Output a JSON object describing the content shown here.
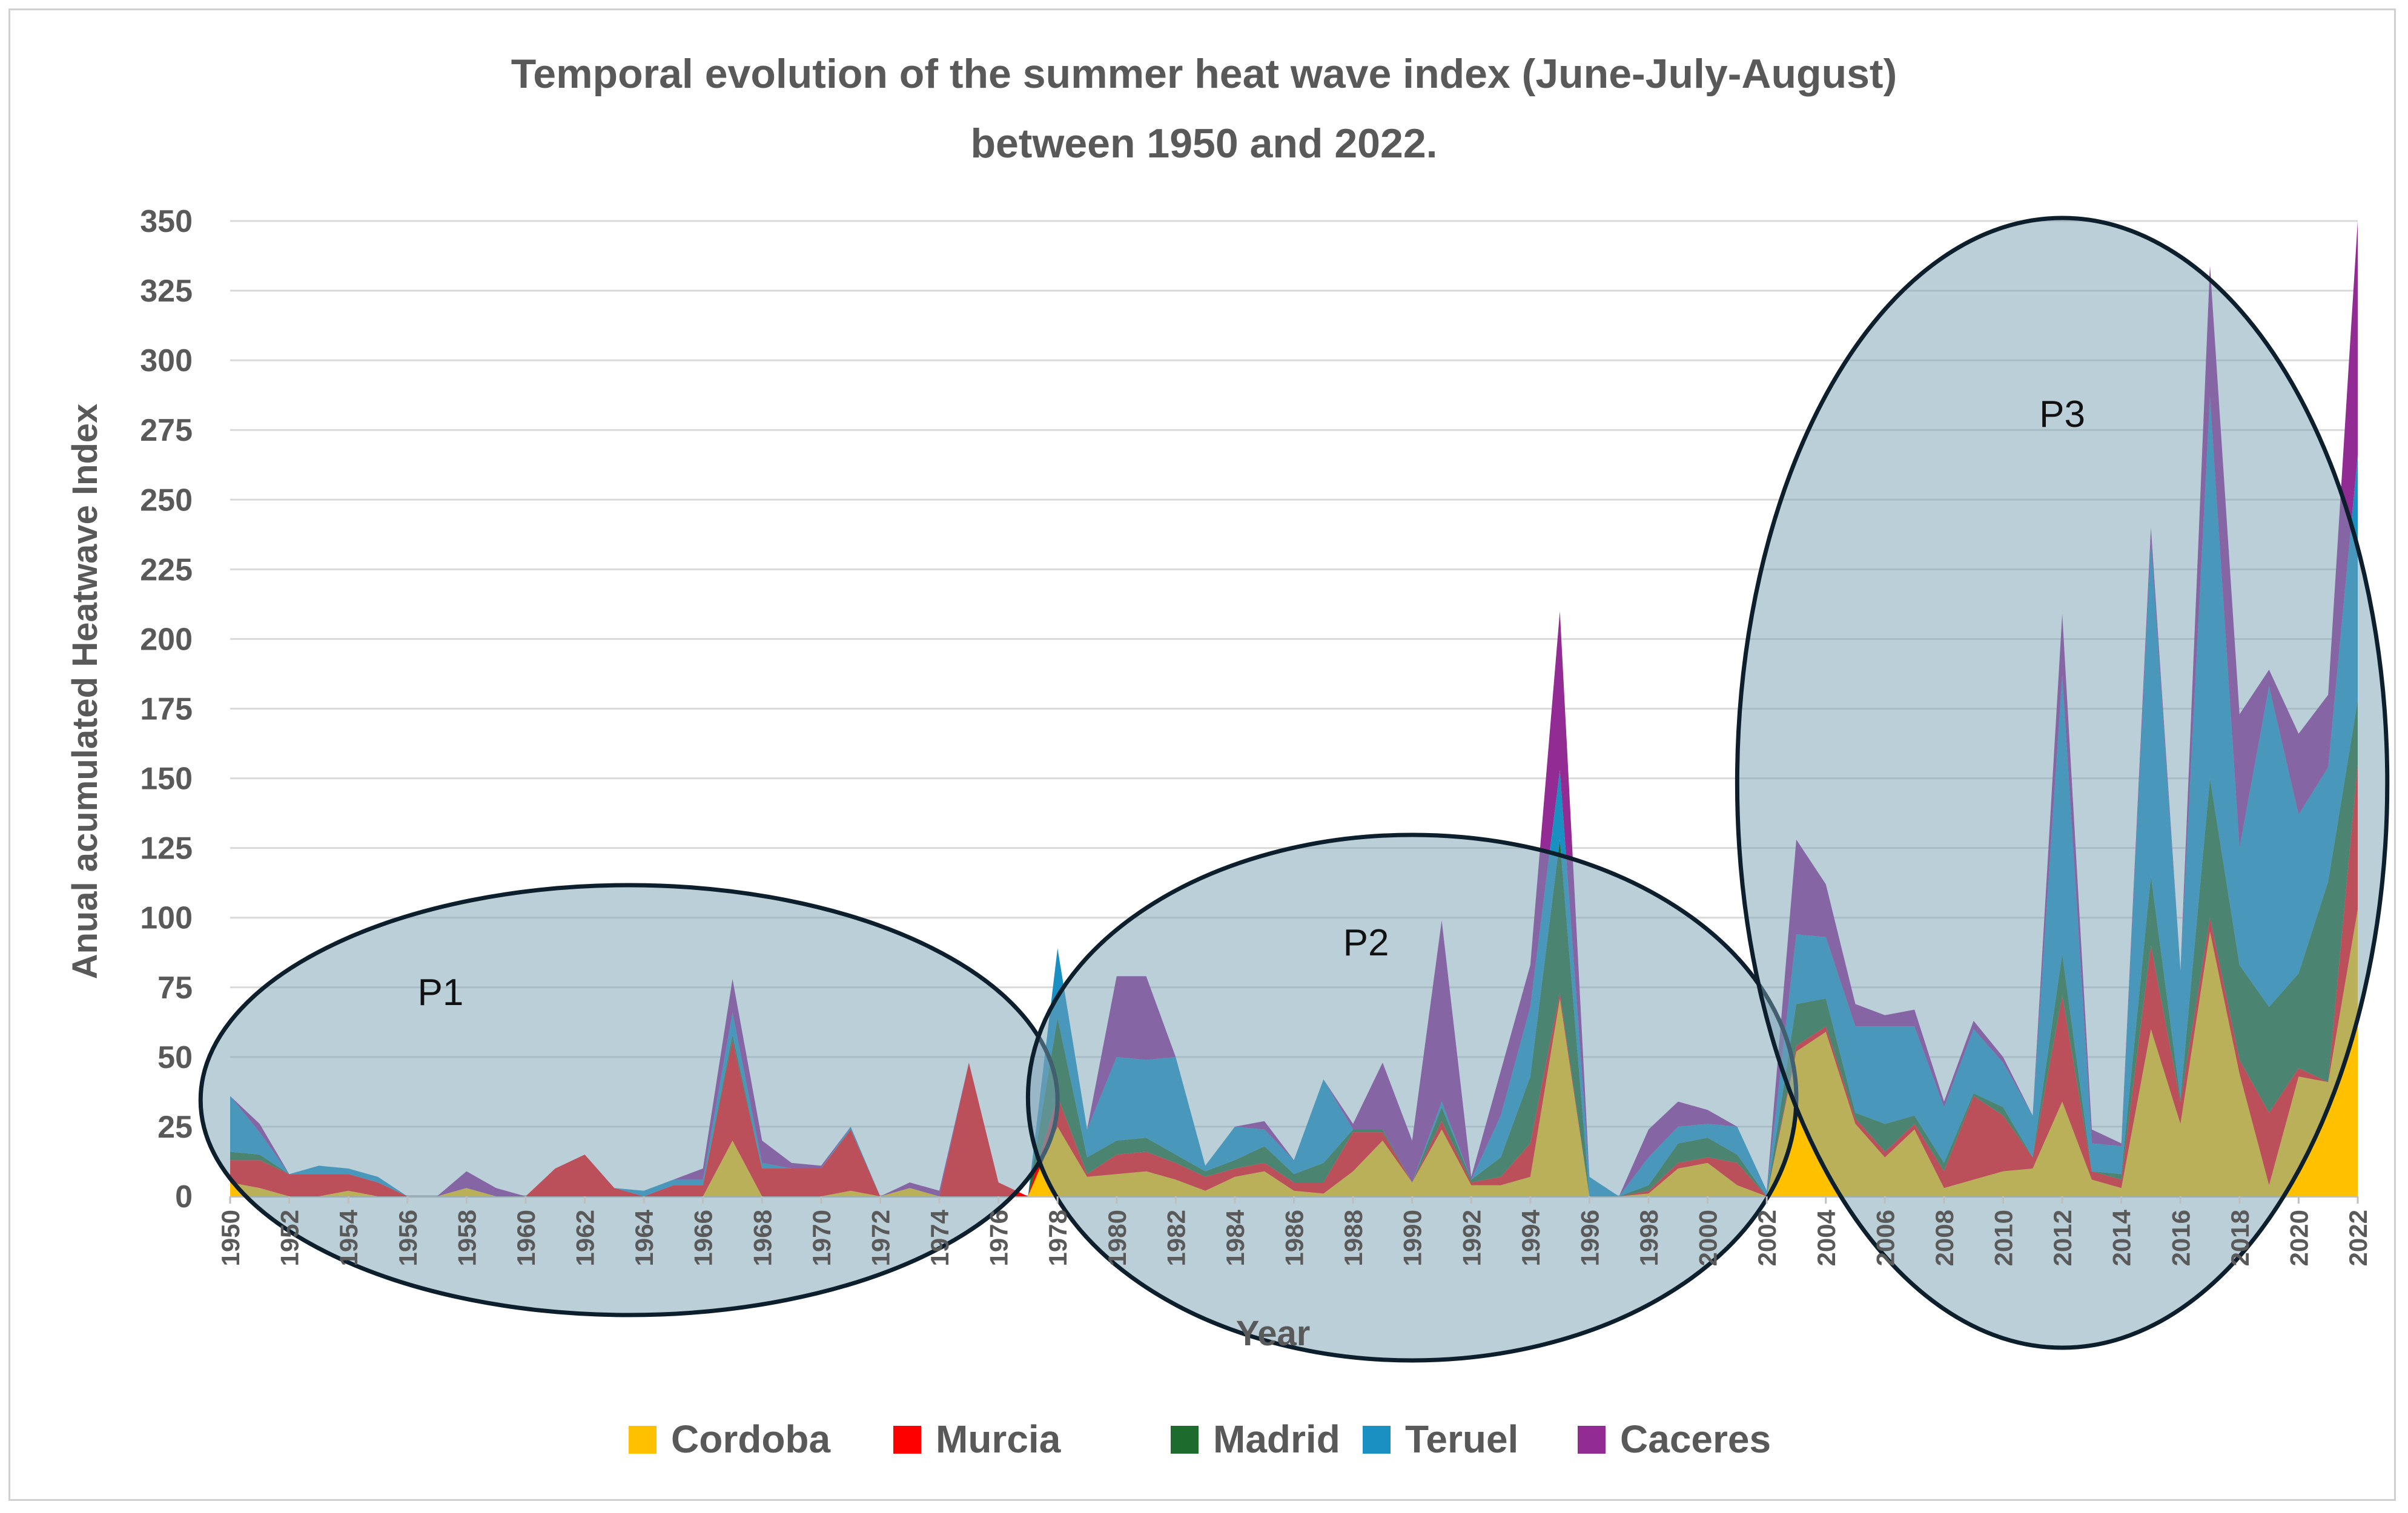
{
  "chart_data": {
    "type": "area",
    "stacked": true,
    "title_lines": [
      "Temporal evolution of the summer heat wave index (June-July-August)",
      "between 1950 and 2022."
    ],
    "xlabel": "Year",
    "ylabel": "Anual acumulated Heatwave Index",
    "ylim": [
      0,
      350
    ],
    "y_ticks": [
      0,
      25,
      50,
      75,
      100,
      125,
      150,
      175,
      200,
      225,
      250,
      275,
      300,
      325,
      350
    ],
    "x_tick_labels": [
      "1950",
      "1952",
      "1954",
      "1956",
      "1958",
      "1960",
      "1962",
      "1964",
      "1966",
      "1968",
      "1970",
      "1972",
      "1974",
      "1976",
      "1978",
      "1980",
      "1982",
      "1984",
      "1986",
      "1988",
      "1990",
      "1992",
      "1994",
      "1996",
      "1998",
      "2000",
      "2002",
      "2004",
      "2006",
      "2008",
      "2010",
      "2012",
      "2014",
      "2016",
      "2018",
      "2020",
      "2022"
    ],
    "x_start": 1950,
    "x_end": 2022,
    "grid": true,
    "legend_position": "bottom",
    "series": [
      {
        "name": "Cordoba",
        "color": "#FFC000",
        "values": [
          5,
          3,
          0,
          0,
          2,
          0,
          0,
          0,
          3,
          0,
          0,
          0,
          0,
          0,
          0,
          0,
          0,
          20,
          0,
          0,
          0,
          2,
          0,
          3,
          0,
          0,
          0,
          0,
          25,
          7,
          8,
          9,
          6,
          2,
          7,
          9,
          2,
          1,
          9,
          20,
          5,
          24,
          4,
          4,
          7,
          71,
          0,
          0,
          1,
          10,
          12,
          4,
          0,
          52,
          59,
          26,
          14,
          24,
          3,
          6,
          9,
          10,
          34,
          6,
          3,
          60,
          26,
          95,
          44,
          4,
          43,
          41,
          103
        ]
      },
      {
        "name": "Murcia",
        "color": "#FF0000",
        "values": [
          8,
          10,
          8,
          8,
          6,
          5,
          0,
          0,
          0,
          0,
          0,
          10,
          15,
          3,
          0,
          4,
          4,
          36,
          10,
          10,
          10,
          22,
          0,
          0,
          0,
          48,
          5,
          0,
          11,
          1,
          7,
          7,
          6,
          5,
          3,
          3,
          3,
          4,
          14,
          3,
          0,
          3,
          1,
          3,
          12,
          2,
          0,
          0,
          1,
          2,
          2,
          8,
          0,
          2,
          2,
          2,
          2,
          2,
          6,
          30,
          20,
          4,
          38,
          3,
          3,
          30,
          8,
          5,
          5,
          26,
          3,
          0,
          52
        ]
      },
      {
        "name": "Madrid",
        "color": "#1E6B2E",
        "values": [
          3,
          2,
          0,
          0,
          0,
          0,
          0,
          0,
          0,
          0,
          0,
          0,
          0,
          0,
          0,
          0,
          0,
          2,
          0,
          0,
          0,
          0,
          0,
          0,
          0,
          0,
          0,
          0,
          28,
          6,
          5,
          5,
          3,
          2,
          3,
          6,
          3,
          7,
          1,
          1,
          0,
          5,
          1,
          7,
          24,
          55,
          0,
          0,
          2,
          7,
          7,
          3,
          0,
          15,
          10,
          2,
          10,
          3,
          3,
          1,
          3,
          0,
          15,
          0,
          2,
          25,
          1,
          50,
          34,
          38,
          34,
          72,
          23
        ]
      },
      {
        "name": "Teruel",
        "color": "#1A8FC2",
        "values": [
          20,
          8,
          0,
          3,
          2,
          2,
          0,
          0,
          0,
          0,
          0,
          0,
          0,
          0,
          2,
          2,
          2,
          8,
          2,
          0,
          0,
          1,
          0,
          0,
          0,
          0,
          0,
          0,
          25,
          10,
          30,
          28,
          35,
          2,
          12,
          6,
          5,
          30,
          0,
          0,
          0,
          2,
          0,
          15,
          25,
          25,
          7,
          0,
          10,
          6,
          5,
          10,
          2,
          25,
          22,
          31,
          35,
          32,
          20,
          23,
          16,
          15,
          100,
          10,
          10,
          120,
          46,
          137,
          42,
          115,
          57,
          41,
          88
        ]
      },
      {
        "name": "Caceres",
        "color": "#922B93",
        "values": [
          0,
          3,
          0,
          0,
          0,
          0,
          0,
          0,
          6,
          3,
          0,
          0,
          0,
          0,
          0,
          0,
          4,
          12,
          8,
          2,
          1,
          0,
          0,
          2,
          2,
          0,
          0,
          0,
          0,
          0,
          29,
          30,
          0,
          0,
          0,
          3,
          0,
          0,
          2,
          24,
          15,
          65,
          1,
          16,
          15,
          57,
          0,
          0,
          10,
          9,
          5,
          0,
          0,
          34,
          19,
          8,
          4,
          6,
          2,
          3,
          2,
          0,
          22,
          5,
          1,
          5,
          0,
          47,
          48,
          6,
          29,
          26,
          84
        ]
      }
    ],
    "annotations": [
      {
        "label": "P1",
        "span": [
          1949,
          1978
        ]
      },
      {
        "label": "P2",
        "span": [
          1977,
          2003
        ]
      },
      {
        "label": "P3",
        "span": [
          2001,
          2023
        ]
      }
    ]
  }
}
